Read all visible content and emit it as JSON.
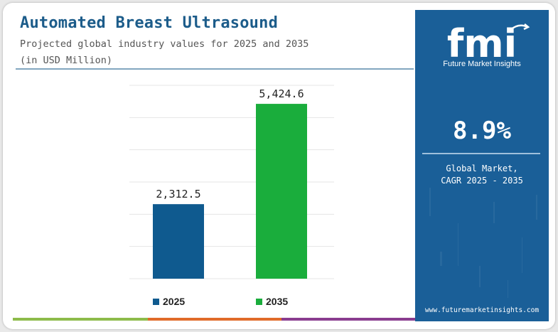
{
  "header": {
    "title": "Automated Breast Ultrasound",
    "subtitle_line1": "Projected global industry values for 2025 and 2035",
    "subtitle_line2": "(in USD Million)"
  },
  "chart_data": {
    "type": "bar",
    "title": "Automated Breast Ultrasound",
    "categories": [
      "2025",
      "2035"
    ],
    "values": [
      2312.5,
      5424.6
    ],
    "value_labels": [
      "2,312.5",
      "5,424.6"
    ],
    "colors": [
      "#0f5a8f",
      "#1aad3c"
    ],
    "xlabel": "",
    "ylabel": "",
    "ylim": [
      0,
      6000
    ],
    "grid": true,
    "legend_position": "bottom"
  },
  "legend": {
    "items": [
      {
        "label": "2025",
        "color": "#0f5a8f"
      },
      {
        "label": "2035",
        "color": "#1aad3c"
      }
    ]
  },
  "side_panel": {
    "logo_text": "fmi",
    "logo_subtitle": "Future Market Insights",
    "cagr_value": "8.9%",
    "cagr_label_line1": "Global Market,",
    "cagr_label_line2": "CAGR 2025 - 2035",
    "url": "www.futuremarketinsights.com",
    "background": "#1a5f98"
  },
  "bottom_bar_colors": [
    "#8dbb4a",
    "#e06b2a",
    "#8a3d8f"
  ]
}
